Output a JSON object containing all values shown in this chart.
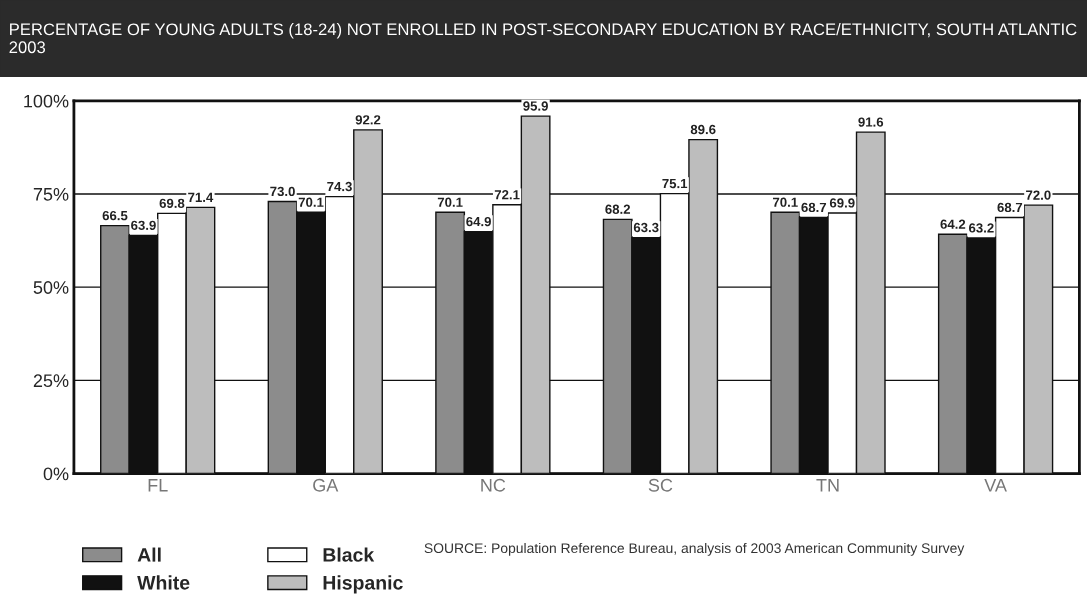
{
  "chart_data": {
    "type": "bar",
    "title": "PERCENTAGE OF YOUNG ADULTS (18-24) NOT ENROLLED IN POST-SECONDARY EDUCATION BY RACE/ETHNICITY, SOUTH ATLANTIC 2003",
    "categories": [
      "FL",
      "GA",
      "NC",
      "SC",
      "TN",
      "VA"
    ],
    "series": [
      {
        "name": "All",
        "color": "#8c8c8c",
        "values": [
          66.5,
          73.0,
          70.1,
          68.2,
          70.1,
          64.2
        ],
        "value_labels": [
          "66.5",
          "73.0",
          "70.1",
          "68.2",
          "70.1",
          "64.2"
        ]
      },
      {
        "name": "White",
        "color": "#111111",
        "values": [
          63.9,
          70.1,
          64.9,
          63.3,
          68.7,
          63.2
        ],
        "value_labels": [
          "63.9",
          "70.1",
          "64.9",
          "63.3",
          "68.7",
          "63.2"
        ]
      },
      {
        "name": "Black",
        "color": "#ffffff",
        "values": [
          69.8,
          74.3,
          72.1,
          75.1,
          69.9,
          68.7
        ],
        "value_labels": [
          "69.8",
          "74.3",
          "72.1",
          "75.1",
          "69.9",
          "68.7"
        ]
      },
      {
        "name": "Hispanic",
        "color": "#bdbdbd",
        "values": [
          71.4,
          92.2,
          95.9,
          89.6,
          91.6,
          72.0
        ],
        "value_labels": [
          "71.4",
          "92.2",
          "95.9",
          "89.6",
          "91.6",
          "72.0"
        ]
      }
    ],
    "ylim": [
      0,
      100
    ],
    "yticks": [
      {
        "value": 0,
        "label": "0%"
      },
      {
        "value": 25,
        "label": "25%"
      },
      {
        "value": 50,
        "label": "50%"
      },
      {
        "value": 75,
        "label": "75%"
      },
      {
        "value": 100,
        "label": "100%"
      }
    ],
    "grid": "y",
    "legend": "bottom left",
    "annotations": [
      "SOURCE: Population Reference Bureau, analysis of 2003 American Community Survey"
    ]
  }
}
